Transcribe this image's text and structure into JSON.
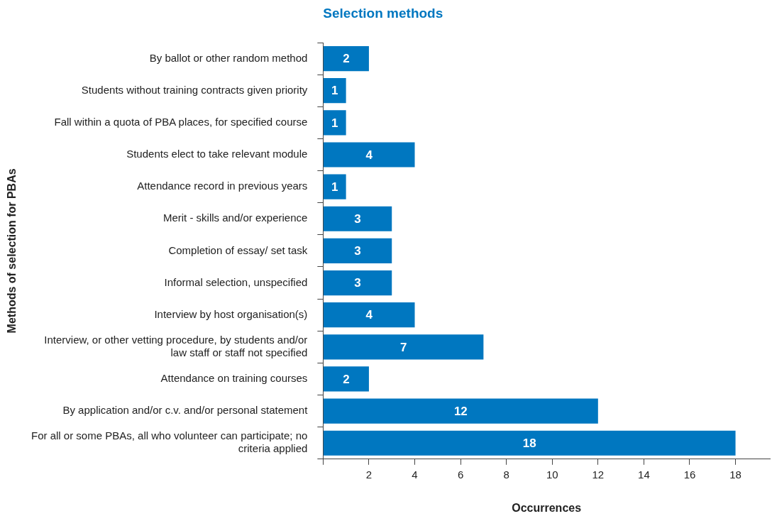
{
  "chart_data": {
    "type": "bar",
    "orientation": "horizontal",
    "title": "Selection methods",
    "xlabel": "Occurrences",
    "ylabel": "Methods of selection for PBAs",
    "categories": [
      "By ballot or other random method",
      "Students without training contracts given priority",
      "Fall within a quota of PBA places, for specified course",
      "Students elect to take relevant module",
      "Attendance record in previous years",
      "Merit - skills and/or experience",
      "Completion of essay/ set task",
      "Informal selection, unspecified",
      "Interview by host organisation(s)",
      "Interview, or other vetting procedure, by students and/or law staff or staff not specified",
      "Attendance on training courses",
      "By application and/or c.v. and/or personal statement",
      "For all or some PBAs, all who volunteer can participate; no criteria applied"
    ],
    "values": [
      2,
      1,
      1,
      4,
      1,
      3,
      3,
      3,
      4,
      7,
      2,
      12,
      18
    ],
    "color": "#0077c0",
    "xlim": [
      0,
      19.5
    ],
    "xticks": [
      {
        "value": 0,
        "label": null
      },
      2,
      4,
      6,
      8,
      10,
      12,
      14,
      16,
      18
    ],
    "data_labels": true,
    "grid": false,
    "legend": false
  }
}
